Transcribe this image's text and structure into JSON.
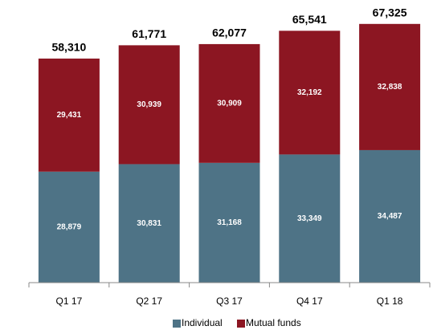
{
  "chart_data": {
    "type": "stacked_bar",
    "categories": [
      "Q1 17",
      "Q2 17",
      "Q3 17",
      "Q4 17",
      "Q1 18"
    ],
    "series": [
      {
        "name": "Individual",
        "color": "#4e7386",
        "values": [
          28879,
          30831,
          31168,
          33349,
          34487
        ],
        "value_labels": [
          "28,879",
          "30,831",
          "31,168",
          "33,349",
          "34,487"
        ]
      },
      {
        "name": "Mutual funds",
        "color": "#8c1622",
        "values": [
          29431,
          30939,
          30909,
          32192,
          32838
        ],
        "value_labels": [
          "29,431",
          "30,939",
          "30,909",
          "32,192",
          "32,838"
        ]
      }
    ],
    "totals": [
      58310,
      61771,
      62077,
      65541,
      67325
    ],
    "total_labels": [
      "58,310",
      "61,771",
      "62,077",
      "65,541",
      "67,325"
    ],
    "ylim": [
      0,
      70000
    ],
    "legend": "bottom"
  }
}
